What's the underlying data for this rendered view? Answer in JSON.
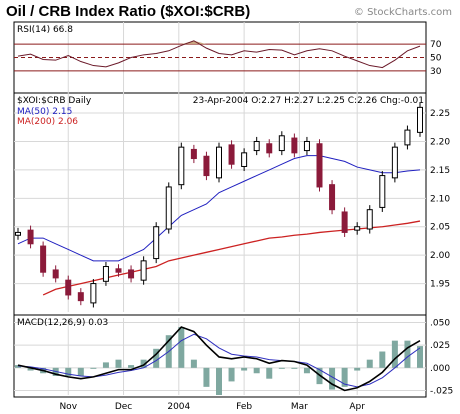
{
  "header": {
    "title": "Oil / CRB Index Ratio ($XOI:$CRB)",
    "watermark": "© StockCharts.com"
  },
  "chart_data": [
    {
      "type": "line",
      "panel": "rsi",
      "label": "RSI(14) 66.8",
      "ylim": [
        0,
        100
      ],
      "y_ticks": [
        70,
        50,
        30
      ],
      "reference_lines": [
        70,
        50,
        30
      ],
      "colors": {
        "line": "#6b1a2a",
        "ref": "#8b1a1a",
        "fill_overbought": "#c8a37e"
      },
      "series": [
        {
          "x": [
            0,
            5,
            10,
            15,
            20,
            25,
            30,
            35,
            40,
            45,
            50,
            55,
            60,
            65,
            70,
            75,
            80,
            85,
            90,
            95,
            100,
            105,
            110,
            115,
            120,
            125,
            130,
            135,
            140,
            145,
            150,
            155,
            160
          ],
          "values": [
            52,
            55,
            47,
            46,
            53,
            44,
            38,
            36,
            42,
            50,
            54,
            56,
            60,
            68,
            75,
            64,
            56,
            54,
            60,
            58,
            62,
            61,
            54,
            60,
            63,
            60,
            52,
            45,
            38,
            35,
            46,
            60,
            67
          ]
        }
      ]
    },
    {
      "type": "candlestick",
      "panel": "price",
      "label": "$XOI:$CRB Daily",
      "quote": "23-Apr-2004  O:2.27  H:2.27  L:2.25  C:2.26  Chg:-0.01",
      "legend": [
        "MA(50) 2.15",
        "MA(200) 2.06"
      ],
      "ylim": [
        1.9,
        2.28
      ],
      "y_ticks": [
        2.25,
        2.2,
        2.15,
        2.1,
        2.05,
        2.0,
        1.95
      ],
      "x_ticks": [
        {
          "x": 20,
          "label": "Nov"
        },
        {
          "x": 42,
          "label": "Dec"
        },
        {
          "x": 64,
          "label": "2004"
        },
        {
          "x": 90,
          "label": "Feb"
        },
        {
          "x": 112,
          "label": "Mar"
        },
        {
          "x": 135,
          "label": "Apr"
        }
      ],
      "colors": {
        "up": "#000000",
        "down": "#8b1a3a",
        "ma50": "#2020c0",
        "ma200": "#cc2222"
      },
      "x": [
        0,
        5,
        10,
        15,
        20,
        25,
        30,
        35,
        40,
        45,
        50,
        55,
        60,
        65,
        70,
        75,
        80,
        85,
        90,
        95,
        100,
        105,
        110,
        115,
        120,
        125,
        130,
        135,
        140,
        145,
        150,
        155,
        160
      ],
      "close": [
        2.04,
        2.02,
        1.97,
        1.96,
        1.93,
        1.92,
        1.95,
        1.98,
        1.97,
        1.96,
        1.99,
        2.05,
        2.12,
        2.19,
        2.17,
        2.14,
        2.19,
        2.16,
        2.18,
        2.2,
        2.18,
        2.21,
        2.18,
        2.2,
        2.12,
        2.08,
        2.04,
        2.05,
        2.08,
        2.14,
        2.19,
        2.22,
        2.26
      ],
      "ma50": [
        2.02,
        2.03,
        2.03,
        2.02,
        2.01,
        2.0,
        1.99,
        1.99,
        1.99,
        2.0,
        2.01,
        2.03,
        2.05,
        2.07,
        2.08,
        2.09,
        2.11,
        2.12,
        2.13,
        2.14,
        2.15,
        2.16,
        2.17,
        2.175,
        2.175,
        2.17,
        2.165,
        2.155,
        2.15,
        2.145,
        2.145,
        2.148,
        2.15
      ],
      "ma200": [
        null,
        null,
        1.93,
        1.94,
        1.945,
        1.95,
        1.955,
        1.96,
        1.965,
        1.97,
        1.975,
        1.98,
        1.99,
        1.995,
        2.0,
        2.005,
        2.01,
        2.015,
        2.02,
        2.025,
        2.03,
        2.032,
        2.035,
        2.037,
        2.04,
        2.042,
        2.044,
        2.046,
        2.048,
        2.05,
        2.053,
        2.056,
        2.06
      ]
    },
    {
      "type": "line",
      "panel": "macd",
      "label": "MACD(12,26,9) 0.03",
      "ylim": [
        -0.03,
        0.055
      ],
      "y_ticks": [
        0.05,
        0.025,
        0.0,
        -0.025
      ],
      "y_tick_labels": [
        ".050",
        ".025",
        ".000",
        "-.025"
      ],
      "colors": {
        "macd": "#000000",
        "signal": "#3030c0",
        "histogram": "#7fa8a0"
      },
      "x": [
        0,
        5,
        10,
        15,
        20,
        25,
        30,
        35,
        40,
        45,
        50,
        55,
        60,
        65,
        70,
        75,
        80,
        85,
        90,
        95,
        100,
        105,
        110,
        115,
        120,
        125,
        130,
        135,
        140,
        145,
        150,
        155,
        160
      ],
      "series": [
        {
          "values": [
            0.003,
            0.0,
            -0.003,
            -0.007,
            -0.01,
            -0.012,
            -0.01,
            -0.006,
            -0.002,
            -0.002,
            0.003,
            0.015,
            0.03,
            0.045,
            0.04,
            0.025,
            0.012,
            0.01,
            0.012,
            0.01,
            0.005,
            0.008,
            0.007,
            0.003,
            -0.008,
            -0.018,
            -0.025,
            -0.022,
            -0.015,
            -0.005,
            0.01,
            0.022,
            0.03
          ]
        },
        {
          "values": [
            0.002,
            0.001,
            -0.001,
            -0.004,
            -0.007,
            -0.009,
            -0.01,
            -0.008,
            -0.005,
            -0.003,
            0.0,
            0.008,
            0.018,
            0.03,
            0.037,
            0.032,
            0.022,
            0.015,
            0.013,
            0.012,
            0.009,
            0.008,
            0.007,
            0.005,
            -0.002,
            -0.01,
            -0.018,
            -0.021,
            -0.018,
            -0.011,
            0.0,
            0.012,
            0.022
          ]
        }
      ]
    }
  ]
}
